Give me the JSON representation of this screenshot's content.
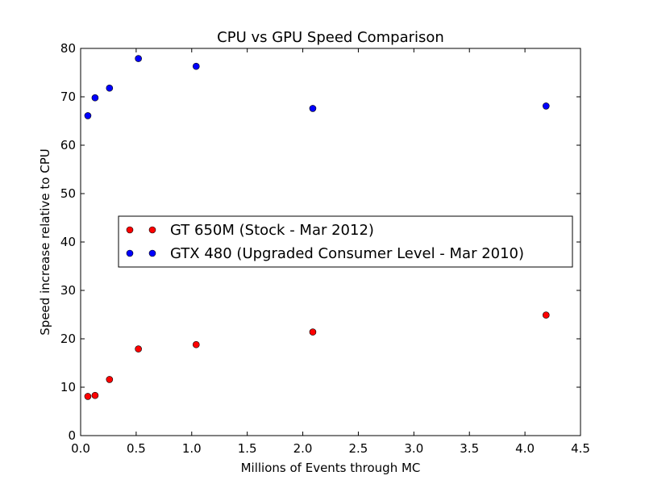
{
  "chart_data": {
    "type": "scatter",
    "title": "CPU vs GPU Speed Comparison",
    "xlabel": "Millions of Events through MC",
    "ylabel": "Speed increase relative to CPU",
    "xlim": [
      0,
      4.5
    ],
    "ylim": [
      0,
      80
    ],
    "xticks": [
      "0.0",
      "0.5",
      "1.0",
      "1.5",
      "2.0",
      "2.5",
      "3.0",
      "3.5",
      "4.0",
      "4.5"
    ],
    "yticks": [
      "0",
      "10",
      "20",
      "30",
      "40",
      "50",
      "60",
      "70",
      "80"
    ],
    "grid": false,
    "legend_position": "center-left",
    "series": [
      {
        "name": "GT 650M (Stock - Mar 2012)",
        "color": "#ff0000",
        "x": [
          0.065,
          0.13,
          0.26,
          0.52,
          1.04,
          2.09,
          4.19
        ],
        "y": [
          8.1,
          8.3,
          11.6,
          17.9,
          18.8,
          21.4,
          24.9
        ]
      },
      {
        "name": "GTX 480 (Upgraded Consumer Level - Mar 2010)",
        "color": "#0000ff",
        "x": [
          0.065,
          0.13,
          0.26,
          0.52,
          1.04,
          2.09,
          4.19
        ],
        "y": [
          66.1,
          69.8,
          71.8,
          77.9,
          76.3,
          67.6,
          68.1
        ]
      }
    ]
  }
}
